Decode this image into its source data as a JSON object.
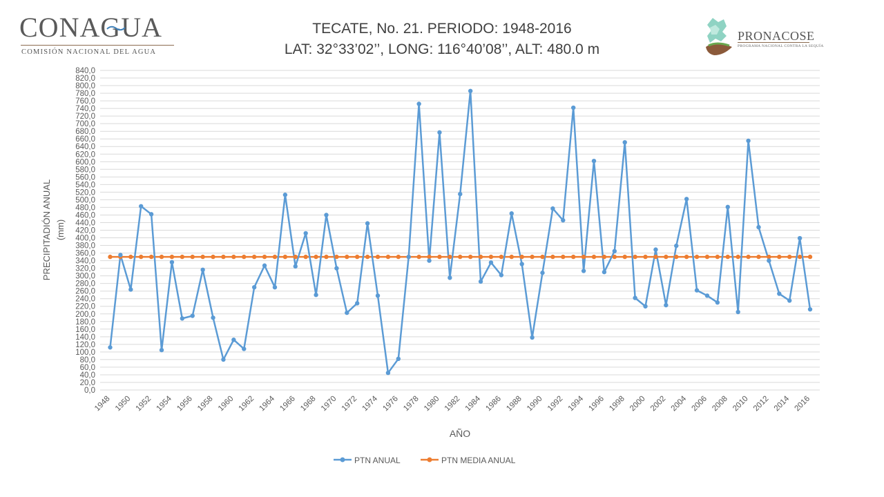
{
  "header": {
    "title_line1": "TECATE, No. 21. PERIODO: 1948-2016",
    "title_line2": "LAT: 32°33’02’’, LONG: 116°40’08’’, ALT: 480.0 m"
  },
  "logos": {
    "left": {
      "name": "CONAGUA",
      "subtitle": "COMISIÓN NACIONAL DEL AGUA"
    },
    "right": {
      "name": "PRONACOSE",
      "subtitle": "PROGRAMA NACIONAL CONTRA LA SEQUÍA"
    }
  },
  "chart_data": {
    "type": "line",
    "xlabel": "AÑO",
    "ylabel_line1": "PRECIPITADIÓN ANUAL",
    "ylabel_line2": "(mm)",
    "ylim": [
      0,
      840
    ],
    "y_step": 20,
    "y_ticks": [
      "0,0",
      "20,0",
      "40,0",
      "60,0",
      "80,0",
      "100,0",
      "120,0",
      "140,0",
      "160,0",
      "180,0",
      "200,0",
      "220,0",
      "240,0",
      "260,0",
      "280,0",
      "300,0",
      "320,0",
      "340,0",
      "360,0",
      "380,0",
      "400,0",
      "420,0",
      "440,0",
      "460,0",
      "480,0",
      "500,0",
      "520,0",
      "540,0",
      "560,0",
      "580,0",
      "600,0",
      "620,0",
      "640,0",
      "660,0",
      "680,0",
      "700,0",
      "720,0",
      "740,0",
      "760,0",
      "780,0",
      "800,0",
      "820,0",
      "840,0"
    ],
    "x_start": 1948,
    "x_end": 2016,
    "x_tick_labels": [
      "1948",
      "1950",
      "1952",
      "1954",
      "1956",
      "1958",
      "1960",
      "1962",
      "1964",
      "1966",
      "1968",
      "1970",
      "1972",
      "1974",
      "1976",
      "1978",
      "1980",
      "1982",
      "1984",
      "1986",
      "1988",
      "1990",
      "1992",
      "1994",
      "1996",
      "1998",
      "2000",
      "2002",
      "2004",
      "2006",
      "2008",
      "2010",
      "2012",
      "2014",
      "2016"
    ],
    "grid": true,
    "legend_position": "bottom",
    "series": [
      {
        "name": "PTN ANUAL",
        "color": "#5b9bd5",
        "values": [
          112,
          355,
          264,
          483,
          462,
          105,
          336,
          188,
          195,
          316,
          190,
          80,
          132,
          108,
          270,
          327,
          270,
          513,
          325,
          412,
          250,
          460,
          320,
          203,
          228,
          438,
          248,
          45,
          82,
          350,
          752,
          340,
          677,
          295,
          515,
          786,
          285,
          335,
          302,
          464,
          331,
          138,
          308,
          477,
          446,
          742,
          313,
          602,
          310,
          365,
          651,
          242,
          220,
          369,
          223,
          379,
          502,
          262,
          248,
          230,
          481,
          205,
          655,
          428,
          340,
          253,
          235,
          399,
          212
        ]
      },
      {
        "name": "PTN MEDIA ANUAL",
        "color": "#ed7d31",
        "constant_value": 350
      }
    ]
  }
}
